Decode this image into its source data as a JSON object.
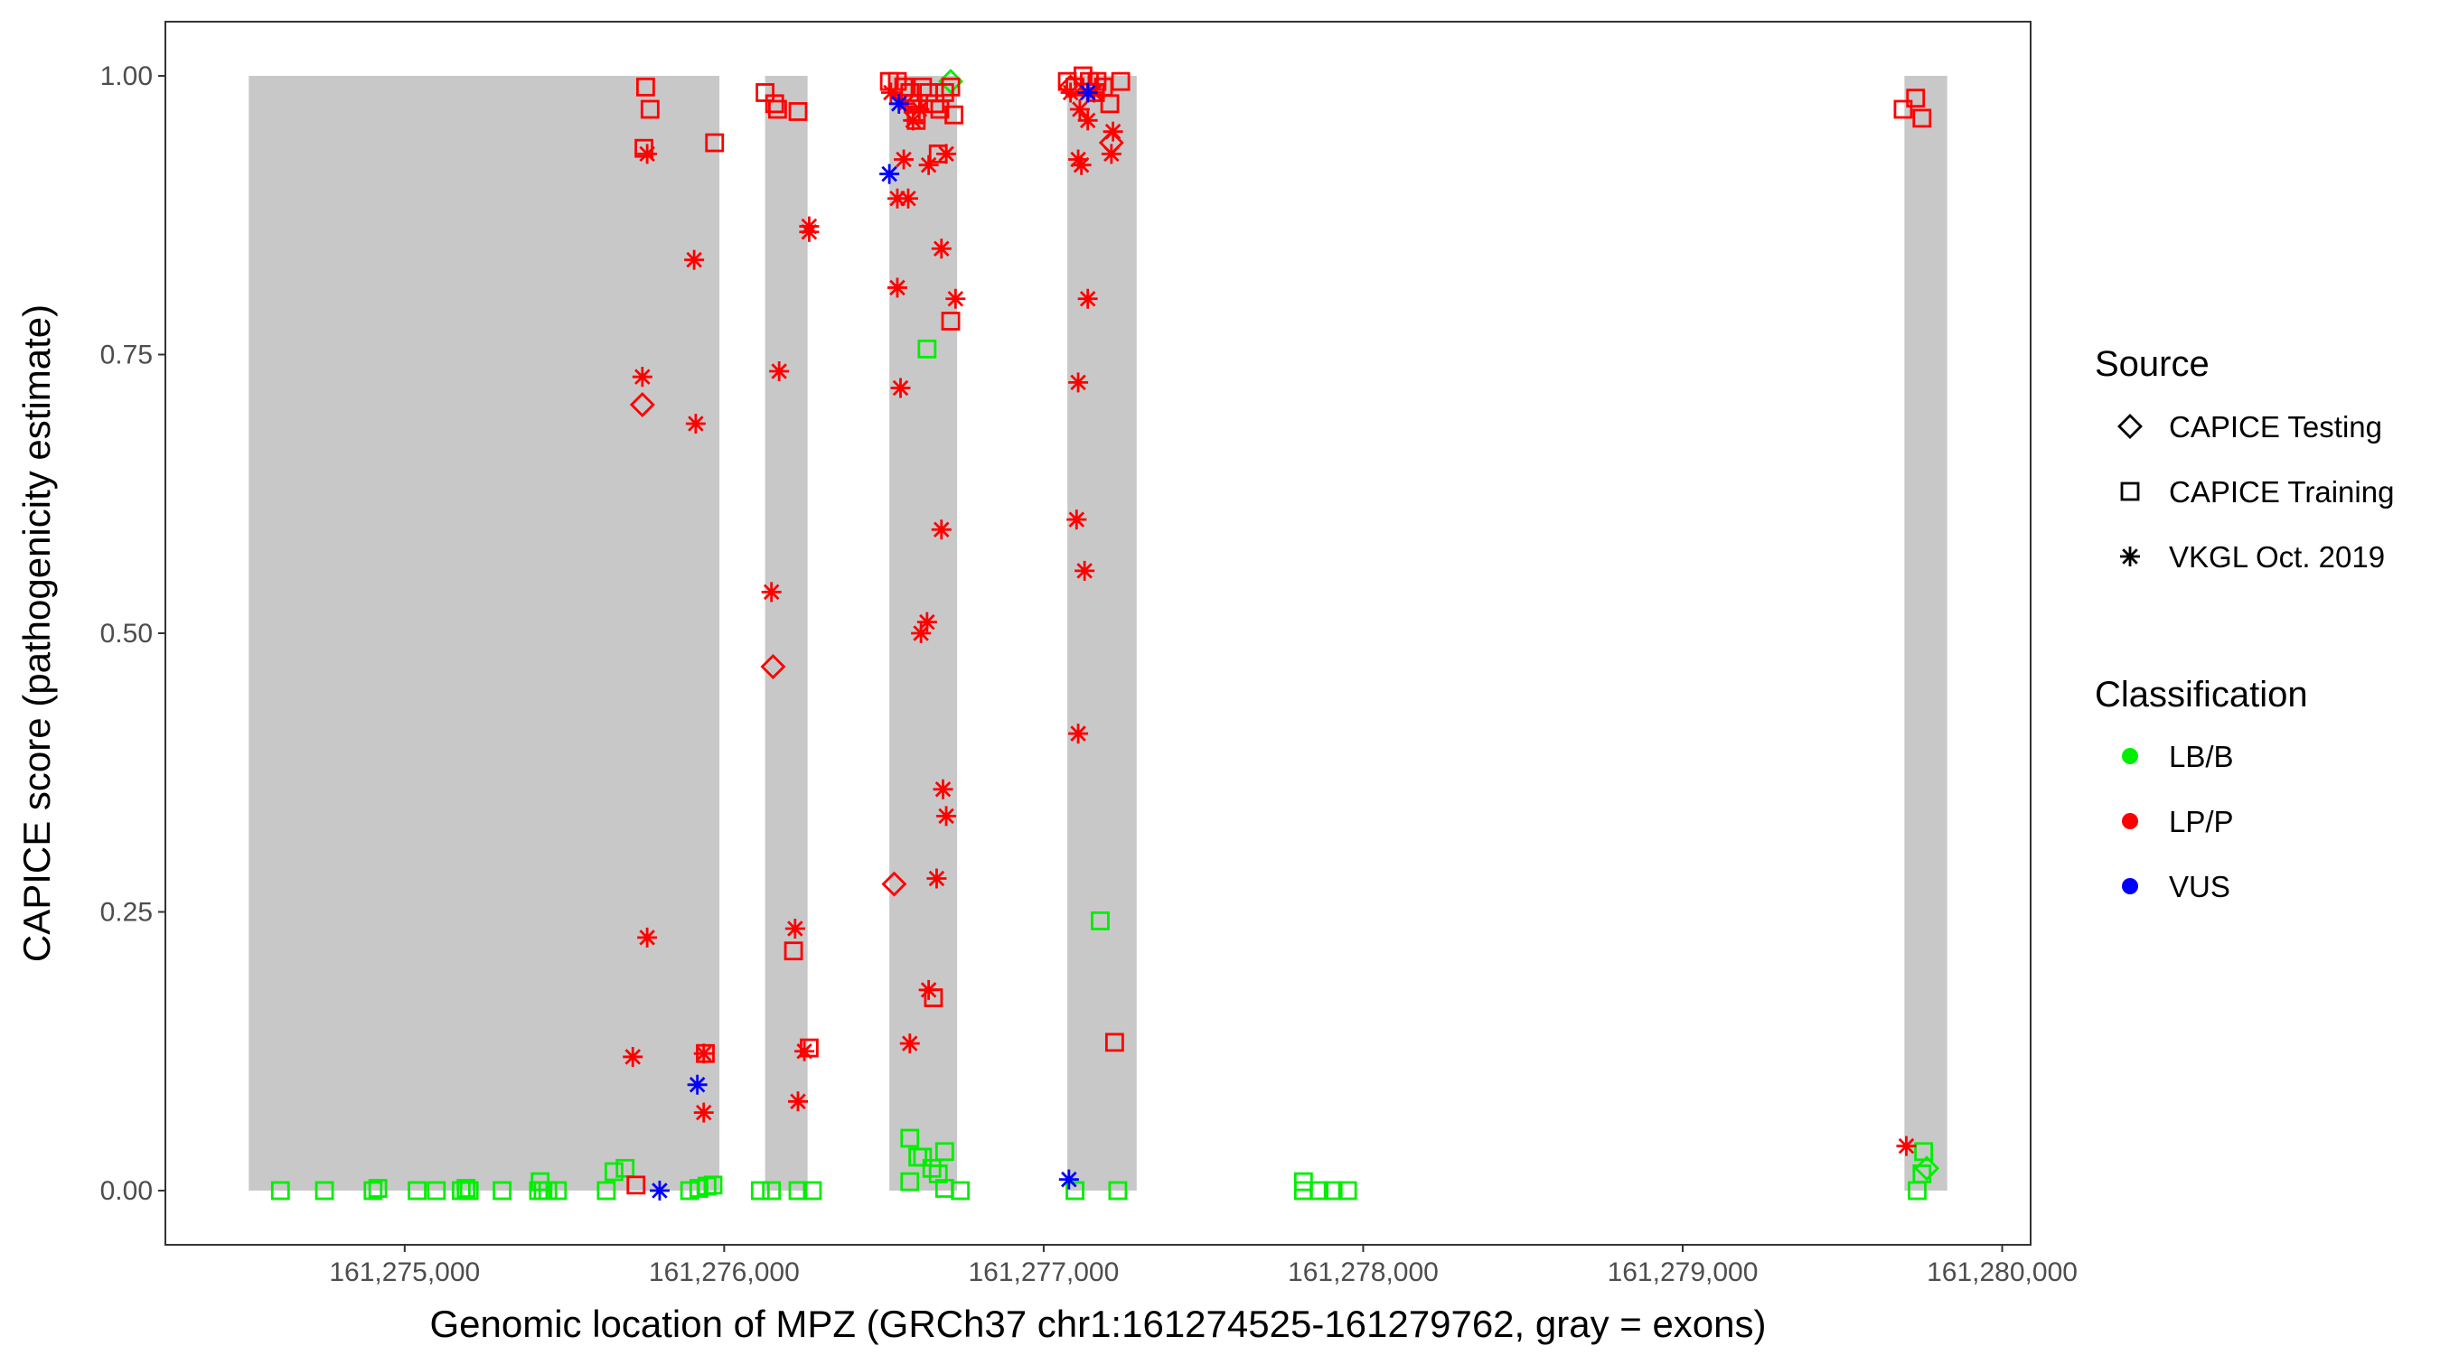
{
  "chart_data": {
    "type": "scatter",
    "xlabel": "Genomic location of MPZ (GRCh37 chr1:161274525-161279762, gray = exons)",
    "ylabel": "CAPICE score (pathogenicity estimate)",
    "xlim": [
      161274251,
      161280089
    ],
    "ylim": [
      -0.0486,
      1.0486
    ],
    "x_ticks": [
      161275000,
      161276000,
      161277000,
      161278000,
      161279000,
      161280000
    ],
    "x_tick_labels": [
      "161,275,000",
      "161,276,000",
      "161,277,000",
      "161,278,000",
      "161,279,000",
      "161,280,000"
    ],
    "y_ticks": [
      0,
      0.25,
      0.5,
      0.75,
      1
    ],
    "y_tick_labels": [
      "0.00",
      "0.25",
      "0.50",
      "0.75",
      "1.00"
    ],
    "grid": false,
    "legend_placement": "right",
    "exons": [
      [
        161274512,
        161275985
      ],
      [
        161276128,
        161276261
      ],
      [
        161276517,
        161276729
      ],
      [
        161277074,
        161277291
      ],
      [
        161279694,
        161279828
      ]
    ],
    "legend": {
      "source_title": "Source",
      "sources": [
        {
          "key": "testing",
          "label": "CAPICE Testing",
          "shape": "diamond"
        },
        {
          "key": "training",
          "label": "CAPICE Training",
          "shape": "square"
        },
        {
          "key": "vkgl",
          "label": "VKGL Oct. 2019",
          "shape": "asterisk"
        }
      ],
      "class_title": "Classification",
      "classes": [
        {
          "key": "LB/B",
          "label": "LB/B",
          "color": "#00EE00"
        },
        {
          "key": "LP/P",
          "label": "LP/P",
          "color": "#FF0000"
        },
        {
          "key": "VUS",
          "label": "VUS",
          "color": "#0000FF"
        }
      ]
    },
    "points": [
      [
        161274611,
        0,
        "training",
        "LB/B"
      ],
      [
        161274749,
        0,
        "training",
        "LB/B"
      ],
      [
        161274901,
        0,
        "training",
        "LB/B"
      ],
      [
        161274916,
        0.002,
        "training",
        "LB/B"
      ],
      [
        161275039,
        0,
        "training",
        "LB/B"
      ],
      [
        161275099,
        0,
        "training",
        "LB/B"
      ],
      [
        161275177,
        0,
        "training",
        "LB/B"
      ],
      [
        161275192,
        0.002,
        "training",
        "LB/B"
      ],
      [
        161275202,
        0,
        "training",
        "LB/B"
      ],
      [
        161275305,
        0,
        "training",
        "LB/B"
      ],
      [
        161275419,
        0,
        "training",
        "LB/B"
      ],
      [
        161275424,
        0.008,
        "training",
        "LB/B"
      ],
      [
        161275433,
        0,
        "training",
        "LB/B"
      ],
      [
        161275448,
        0,
        "training",
        "LB/B"
      ],
      [
        161275478,
        0,
        "training",
        "LB/B"
      ],
      [
        161275631,
        0,
        "training",
        "LB/B"
      ],
      [
        161275655,
        0.017,
        "training",
        "LB/B"
      ],
      [
        161275690,
        0.02,
        "training",
        "LB/B"
      ],
      [
        161275892,
        0,
        "training",
        "LB/B"
      ],
      [
        161275921,
        0.002,
        "training",
        "LB/B"
      ],
      [
        161275946,
        0.004,
        "training",
        "LB/B"
      ],
      [
        161275965,
        0.005,
        "training",
        "LB/B"
      ],
      [
        161276113,
        0,
        "training",
        "LB/B"
      ],
      [
        161276148,
        0,
        "training",
        "LB/B"
      ],
      [
        161276231,
        0,
        "training",
        "LB/B"
      ],
      [
        161276276,
        0,
        "training",
        "LB/B"
      ],
      [
        161276581,
        0.047,
        "training",
        "LB/B"
      ],
      [
        161276581,
        0.008,
        "training",
        "LB/B"
      ],
      [
        161276606,
        0.03,
        "training",
        "LB/B"
      ],
      [
        161276621,
        0.03,
        "training",
        "LB/B"
      ],
      [
        161276650,
        0.02,
        "training",
        "LB/B"
      ],
      [
        161276670,
        0.015,
        "training",
        "LB/B"
      ],
      [
        161276690,
        0.035,
        "training",
        "LB/B"
      ],
      [
        161276690,
        0.002,
        "training",
        "LB/B"
      ],
      [
        161276739,
        0,
        "training",
        "LB/B"
      ],
      [
        161276635,
        0.755,
        "training",
        "LB/B"
      ],
      [
        161277098,
        0,
        "training",
        "LB/B"
      ],
      [
        161277177,
        0.242,
        "training",
        "LB/B"
      ],
      [
        161277232,
        0,
        "training",
        "LB/B"
      ],
      [
        161277813,
        0.008,
        "training",
        "LB/B"
      ],
      [
        161277813,
        0,
        "training",
        "LB/B"
      ],
      [
        161277862,
        0,
        "training",
        "LB/B"
      ],
      [
        161277906,
        0,
        "training",
        "LB/B"
      ],
      [
        161277951,
        0,
        "training",
        "LB/B"
      ],
      [
        161279734,
        0,
        "training",
        "LB/B"
      ],
      [
        161279754,
        0.035,
        "training",
        "LB/B"
      ],
      [
        161279749,
        0.015,
        "training",
        "LB/B"
      ],
      [
        161276709,
        0.995,
        "testing",
        "LB/B"
      ],
      [
        161279764,
        0.02,
        "testing",
        "LB/B"
      ],
      [
        161275754,
        0.99,
        "training",
        "LP/P"
      ],
      [
        161275768,
        0.97,
        "training",
        "LP/P"
      ],
      [
        161275749,
        0.935,
        "training",
        "LP/P"
      ],
      [
        161275970,
        0.94,
        "training",
        "LP/P"
      ],
      [
        161276128,
        0.985,
        "training",
        "LP/P"
      ],
      [
        161276158,
        0.975,
        "training",
        "LP/P"
      ],
      [
        161276167,
        0.97,
        "training",
        "LP/P"
      ],
      [
        161276231,
        0.968,
        "training",
        "LP/P"
      ],
      [
        161276217,
        0.215,
        "training",
        "LP/P"
      ],
      [
        161276266,
        0.128,
        "training",
        "LP/P"
      ],
      [
        161275941,
        0.123,
        "training",
        "LP/P"
      ],
      [
        161276709,
        0.78,
        "training",
        "LP/P"
      ],
      [
        161276655,
        0.173,
        "training",
        "LP/P"
      ],
      [
        161277222,
        0.133,
        "training",
        "LP/P"
      ],
      [
        161279690,
        0.97,
        "training",
        "LP/P"
      ],
      [
        161279729,
        0.98,
        "training",
        "LP/P"
      ],
      [
        161279749,
        0.962,
        "training",
        "LP/P"
      ],
      [
        161275724,
        0.005,
        "training",
        "LP/P"
      ],
      [
        161276517,
        0.995,
        "training",
        "LP/P"
      ],
      [
        161276542,
        0.995,
        "training",
        "LP/P"
      ],
      [
        161276562,
        0.99,
        "training",
        "LP/P"
      ],
      [
        161276581,
        0.985,
        "training",
        "LP/P"
      ],
      [
        161276591,
        0.975,
        "training",
        "LP/P"
      ],
      [
        161276601,
        0.965,
        "training",
        "LP/P"
      ],
      [
        161276621,
        0.99,
        "training",
        "LP/P"
      ],
      [
        161276640,
        0.985,
        "training",
        "LP/P"
      ],
      [
        161276660,
        0.975,
        "training",
        "LP/P"
      ],
      [
        161276675,
        0.97,
        "training",
        "LP/P"
      ],
      [
        161276690,
        0.985,
        "training",
        "LP/P"
      ],
      [
        161276719,
        0.965,
        "training",
        "LP/P"
      ],
      [
        161276709,
        0.99,
        "training",
        "LP/P"
      ],
      [
        161276670,
        0.93,
        "training",
        "LP/P"
      ],
      [
        161276601,
        0.96,
        "training",
        "LP/P"
      ],
      [
        161277074,
        0.995,
        "training",
        "LP/P"
      ],
      [
        161277098,
        0.99,
        "training",
        "LP/P"
      ],
      [
        161277123,
        1.0,
        "training",
        "LP/P"
      ],
      [
        161277143,
        0.995,
        "training",
        "LP/P"
      ],
      [
        161277167,
        0.995,
        "training",
        "LP/P"
      ],
      [
        161277187,
        0.99,
        "training",
        "LP/P"
      ],
      [
        161277207,
        0.975,
        "training",
        "LP/P"
      ],
      [
        161277241,
        0.995,
        "training",
        "LP/P"
      ],
      [
        161277162,
        0.985,
        "training",
        "LP/P"
      ],
      [
        161275744,
        0.705,
        "testing",
        "LP/P"
      ],
      [
        161276153,
        0.47,
        "testing",
        "LP/P"
      ],
      [
        161276532,
        0.275,
        "testing",
        "LP/P"
      ],
      [
        161277212,
        0.94,
        "testing",
        "LP/P"
      ],
      [
        161277084,
        0.99,
        "testing",
        "LP/P"
      ],
      [
        161275759,
        0.93,
        "vkgl",
        "LP/P"
      ],
      [
        161275906,
        0.835,
        "vkgl",
        "LP/P"
      ],
      [
        161275744,
        0.73,
        "vkgl",
        "LP/P"
      ],
      [
        161275911,
        0.688,
        "vkgl",
        "LP/P"
      ],
      [
        161275759,
        0.227,
        "vkgl",
        "LP/P"
      ],
      [
        161275714,
        0.12,
        "vkgl",
        "LP/P"
      ],
      [
        161275936,
        0.123,
        "vkgl",
        "LP/P"
      ],
      [
        161275936,
        0.07,
        "vkgl",
        "LP/P"
      ],
      [
        161276266,
        0.865,
        "vkgl",
        "LP/P"
      ],
      [
        161276266,
        0.86,
        "vkgl",
        "LP/P"
      ],
      [
        161276172,
        0.735,
        "vkgl",
        "LP/P"
      ],
      [
        161276148,
        0.537,
        "vkgl",
        "LP/P"
      ],
      [
        161276222,
        0.235,
        "vkgl",
        "LP/P"
      ],
      [
        161276251,
        0.125,
        "vkgl",
        "LP/P"
      ],
      [
        161276231,
        0.08,
        "vkgl",
        "LP/P"
      ],
      [
        161276542,
        0.81,
        "vkgl",
        "LP/P"
      ],
      [
        161276552,
        0.72,
        "vkgl",
        "LP/P"
      ],
      [
        161276562,
        0.925,
        "vkgl",
        "LP/P"
      ],
      [
        161276542,
        0.89,
        "vkgl",
        "LP/P"
      ],
      [
        161276576,
        0.89,
        "vkgl",
        "LP/P"
      ],
      [
        161276680,
        0.845,
        "vkgl",
        "LP/P"
      ],
      [
        161276724,
        0.8,
        "vkgl",
        "LP/P"
      ],
      [
        161276680,
        0.593,
        "vkgl",
        "LP/P"
      ],
      [
        161276635,
        0.51,
        "vkgl",
        "LP/P"
      ],
      [
        161276616,
        0.5,
        "vkgl",
        "LP/P"
      ],
      [
        161276685,
        0.36,
        "vkgl",
        "LP/P"
      ],
      [
        161276695,
        0.336,
        "vkgl",
        "LP/P"
      ],
      [
        161276665,
        0.28,
        "vkgl",
        "LP/P"
      ],
      [
        161276640,
        0.18,
        "vkgl",
        "LP/P"
      ],
      [
        161276581,
        0.132,
        "vkgl",
        "LP/P"
      ],
      [
        161276640,
        0.92,
        "vkgl",
        "LP/P"
      ],
      [
        161276695,
        0.93,
        "vkgl",
        "LP/P"
      ],
      [
        161276611,
        0.97,
        "vkgl",
        "LP/P"
      ],
      [
        161276522,
        0.985,
        "vkgl",
        "LP/P"
      ],
      [
        161276567,
        0.975,
        "vkgl",
        "LP/P"
      ],
      [
        161276591,
        0.96,
        "vkgl",
        "LP/P"
      ],
      [
        161277108,
        0.925,
        "vkgl",
        "LP/P"
      ],
      [
        161277118,
        0.92,
        "vkgl",
        "LP/P"
      ],
      [
        161277138,
        0.8,
        "vkgl",
        "LP/P"
      ],
      [
        161277108,
        0.725,
        "vkgl",
        "LP/P"
      ],
      [
        161277103,
        0.602,
        "vkgl",
        "LP/P"
      ],
      [
        161277128,
        0.556,
        "vkgl",
        "LP/P"
      ],
      [
        161277108,
        0.41,
        "vkgl",
        "LP/P"
      ],
      [
        161277217,
        0.95,
        "vkgl",
        "LP/P"
      ],
      [
        161277212,
        0.93,
        "vkgl",
        "LP/P"
      ],
      [
        161277138,
        0.96,
        "vkgl",
        "LP/P"
      ],
      [
        161277158,
        0.985,
        "vkgl",
        "LP/P"
      ],
      [
        161277084,
        0.985,
        "vkgl",
        "LP/P"
      ],
      [
        161277113,
        0.97,
        "vkgl",
        "LP/P"
      ],
      [
        161279700,
        0.04,
        "vkgl",
        "LP/P"
      ],
      [
        161275916,
        0.095,
        "vkgl",
        "VUS"
      ],
      [
        161275798,
        0,
        "vkgl",
        "VUS"
      ],
      [
        161276517,
        0.912,
        "vkgl",
        "VUS"
      ],
      [
        161276547,
        0.975,
        "vkgl",
        "VUS"
      ],
      [
        161277138,
        0.985,
        "vkgl",
        "VUS"
      ],
      [
        161277079,
        0.01,
        "vkgl",
        "VUS"
      ]
    ]
  }
}
